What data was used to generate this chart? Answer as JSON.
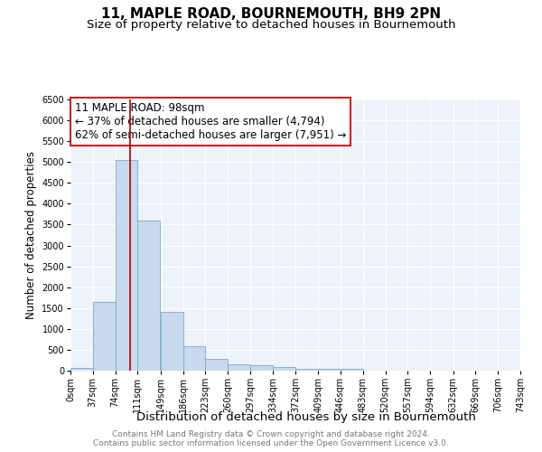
{
  "title": "11, MAPLE ROAD, BOURNEMOUTH, BH9 2PN",
  "subtitle": "Size of property relative to detached houses in Bournemouth",
  "xlabel": "Distribution of detached houses by size in Bournemouth",
  "ylabel": "Number of detached properties",
  "bins": [
    0,
    37,
    74,
    111,
    149,
    186,
    223,
    260,
    297,
    334,
    372,
    409,
    446,
    483,
    520,
    557,
    594,
    632,
    669,
    706,
    743
  ],
  "counts": [
    75,
    1650,
    5050,
    3600,
    1400,
    580,
    290,
    160,
    135,
    90,
    50,
    40,
    40,
    0,
    0,
    0,
    0,
    0,
    0,
    0
  ],
  "bar_color": "#c8d8ee",
  "bar_edge_color": "#7aaad0",
  "vline_x": 98,
  "vline_color": "#aa0000",
  "annotation_text": "11 MAPLE ROAD: 98sqm\n← 37% of detached houses are smaller (4,794)\n62% of semi-detached houses are larger (7,951) →",
  "annotation_box_color": "#ffffff",
  "annotation_box_edge_color": "#cc2222",
  "ylim": [
    0,
    6500
  ],
  "yticks": [
    0,
    500,
    1000,
    1500,
    2000,
    2500,
    3000,
    3500,
    4000,
    4500,
    5000,
    5500,
    6000,
    6500
  ],
  "background_color": "#eef2fa",
  "grid_color": "#ffffff",
  "footer_line1": "Contains HM Land Registry data © Crown copyright and database right 2024.",
  "footer_line2": "Contains public sector information licensed under the Open Government Licence v3.0.",
  "title_fontsize": 11,
  "subtitle_fontsize": 9.5,
  "xlabel_fontsize": 9.5,
  "ylabel_fontsize": 8.5,
  "tick_fontsize": 7,
  "annotation_fontsize": 8.5,
  "footer_fontsize": 6.5
}
